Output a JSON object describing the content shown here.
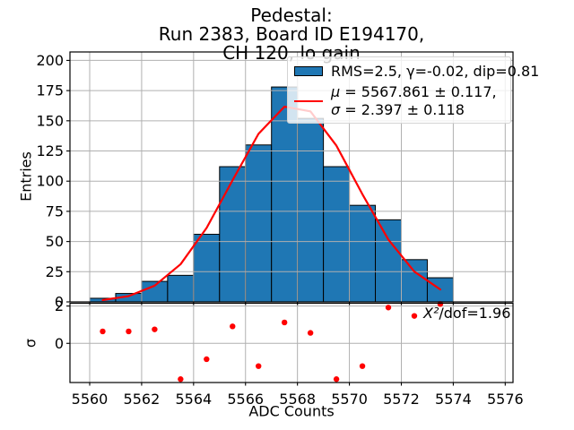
{
  "colors": {
    "bar_fill": "#1f77b4",
    "bar_edge": "#000000",
    "fit_line": "#ff0000",
    "residual_marker": "#ff0000",
    "grid": "#b0b0b0",
    "spine": "#000000"
  },
  "legend": {
    "row1": "RMS=2.5, γ=-0.02, dip=0.81",
    "row2_symbol": "μ",
    "row2_text": " = 5567.861 ± 0.117,",
    "row3_symbol": "σ",
    "row3_text": " = 2.397 ± 0.118"
  },
  "annotation": {
    "symbol": "X²",
    "text": "/dof=1.96",
    "value": 1.96
  },
  "chart_data": {
    "type": "bar",
    "subtype": "histogram_with_gaussian_fit_and_residuals",
    "title": "Pedestal:\nRun 2383, Board ID E194170, CH 120, lo gain",
    "xlabel": "ADC Counts",
    "xticks": [
      5560,
      5562,
      5564,
      5566,
      5568,
      5570,
      5572,
      5574,
      5576
    ],
    "xlim": [
      5559.24,
      5576.3
    ],
    "grid": true,
    "legend_position": "upper right",
    "main": {
      "ylabel": "Entries",
      "ylim": [
        0,
        207
      ],
      "yticks": [
        0,
        25,
        50,
        75,
        100,
        125,
        150,
        175,
        200
      ],
      "bin_edges": [
        5560,
        5561,
        5562,
        5563,
        5564,
        5565,
        5566,
        5567,
        5568,
        5569,
        5570,
        5571,
        5572,
        5573,
        5574
      ],
      "counts": [
        3,
        7,
        17,
        22,
        56,
        112,
        130,
        178,
        152,
        112,
        80,
        68,
        35,
        20
      ],
      "fit": {
        "mu": 5567.861,
        "mu_err": 0.117,
        "sigma": 2.397,
        "sigma_err": 0.118,
        "rms": 2.5,
        "gamma": -0.02,
        "dip": 0.81,
        "x": [
          5560.5,
          5561.5,
          5562.5,
          5563.5,
          5564.5,
          5565.5,
          5566.5,
          5567.5,
          5568.5,
          5569.5,
          5570.5,
          5571.5,
          5572.5,
          5573.5
        ],
        "y": [
          1.5,
          4.8,
          13.4,
          31.2,
          61.2,
          100.7,
          139.2,
          161.7,
          157.8,
          129.4,
          89.2,
          51.6,
          25.1,
          10.3
        ]
      }
    },
    "residuals": {
      "ylabel": "σ",
      "ylim": [
        -2.1,
        2.15
      ],
      "yticks": [
        0,
        2
      ],
      "x": [
        5560.5,
        5561.5,
        5562.5,
        5563.5,
        5564.5,
        5565.5,
        5566.5,
        5567.5,
        5568.5,
        5569.5,
        5570.5,
        5571.5,
        5572.5,
        5573.5
      ],
      "y": [
        0.64,
        0.64,
        0.75,
        -1.92,
        -0.85,
        0.91,
        -1.22,
        1.12,
        0.56,
        -1.92,
        -1.22,
        1.92,
        1.47,
        2.11
      ],
      "chi2_dof": 1.96
    }
  }
}
